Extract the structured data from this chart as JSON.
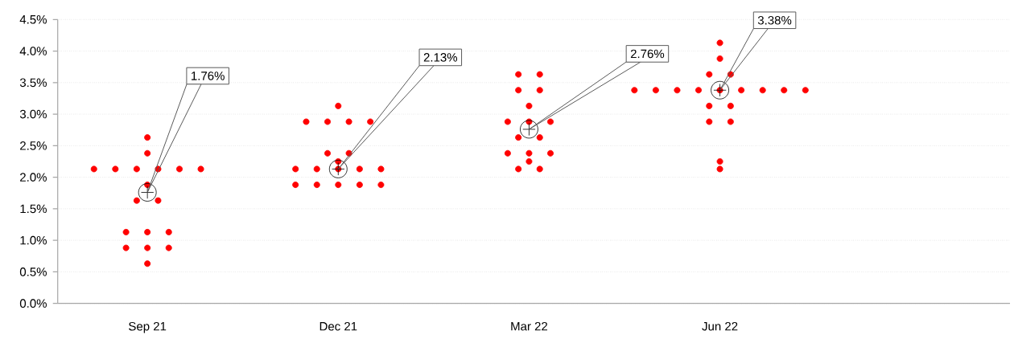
{
  "chart_data": {
    "type": "scatter",
    "categories": [
      "Sep 21",
      "Dec 21",
      "Mar 22",
      "Jun 22",
      null
    ],
    "ylim": [
      0,
      4.5
    ],
    "yticks": [
      {
        "value": 0,
        "label": "0.0%"
      },
      {
        "value": 0.5,
        "label": "0.5%"
      },
      {
        "value": 1,
        "label": "1.0%"
      },
      {
        "value": 1.5,
        "label": "1.5%"
      },
      {
        "value": 2,
        "label": "2.0%"
      },
      {
        "value": 2.5,
        "label": "2.5%"
      },
      {
        "value": 3,
        "label": "3.0%"
      },
      {
        "value": 3.5,
        "label": "3.5%"
      },
      {
        "value": 4,
        "label": "4.0%"
      },
      {
        "value": 4.5,
        "label": "4.5%"
      }
    ],
    "grid": "y",
    "series": [
      {
        "color": "#ff0000",
        "marker": "circle",
        "x": [
          "Sep 21",
          "Sep 21",
          "Sep 21",
          "Sep 21",
          "Sep 21",
          "Sep 21",
          "Sep 21",
          "Sep 21",
          "Sep 21",
          "Sep 21",
          "Sep 21",
          "Sep 21",
          "Sep 21",
          "Sep 21",
          "Sep 21",
          "Sep 21",
          "Sep 21",
          "Sep 21",
          "Dec 21",
          "Dec 21",
          "Dec 21",
          "Dec 21",
          "Dec 21",
          "Dec 21",
          "Dec 21",
          "Dec 21",
          "Dec 21",
          "Dec 21",
          "Dec 21",
          "Dec 21",
          "Dec 21",
          "Dec 21",
          "Dec 21",
          "Dec 21",
          "Dec 21",
          "Dec 21",
          "Mar 22",
          "Mar 22",
          "Mar 22",
          "Mar 22",
          "Mar 22",
          "Mar 22",
          "Mar 22",
          "Mar 22",
          "Mar 22",
          "Mar 22",
          "Mar 22",
          "Mar 22",
          "Mar 22",
          "Mar 22",
          "Mar 22",
          "Mar 22",
          "Jun 22",
          "Jun 22",
          "Jun 22",
          "Jun 22",
          "Jun 22",
          "Jun 22",
          "Jun 22",
          "Jun 22",
          "Jun 22",
          "Jun 22",
          "Jun 22",
          "Jun 22",
          "Jun 22",
          "Jun 22",
          "Jun 22",
          "Jun 22",
          "Jun 22",
          "Jun 22",
          "Jun 22"
        ],
        "values": [
          2.63,
          2.38,
          2.13,
          2.13,
          2.13,
          2.13,
          2.13,
          2.13,
          1.88,
          1.63,
          1.63,
          1.13,
          1.13,
          1.13,
          0.88,
          0.88,
          0.88,
          0.63,
          3.13,
          2.88,
          2.88,
          2.88,
          2.88,
          2.38,
          2.38,
          2.25,
          2.13,
          2.13,
          2.13,
          2.13,
          2.13,
          1.88,
          1.88,
          1.88,
          1.88,
          1.88,
          3.63,
          3.63,
          3.38,
          3.38,
          3.13,
          2.88,
          2.88,
          2.88,
          2.63,
          2.63,
          2.38,
          2.38,
          2.38,
          2.25,
          2.13,
          2.13,
          4.13,
          3.88,
          3.63,
          3.63,
          3.38,
          3.38,
          3.38,
          3.38,
          3.38,
          3.38,
          3.38,
          3.38,
          3.38,
          3.13,
          3.13,
          2.88,
          2.88,
          2.25,
          2.13
        ]
      },
      {
        "color": "#000000",
        "marker": "cross",
        "x": [
          "Sep 21",
          "Dec 21",
          "Mar 22",
          "Jun 22"
        ],
        "values": [
          1.76,
          2.13,
          2.76,
          3.38
        ]
      }
    ],
    "annotations": [
      "1.76%",
      "2.13%",
      "2.76%",
      "3.38%"
    ]
  }
}
